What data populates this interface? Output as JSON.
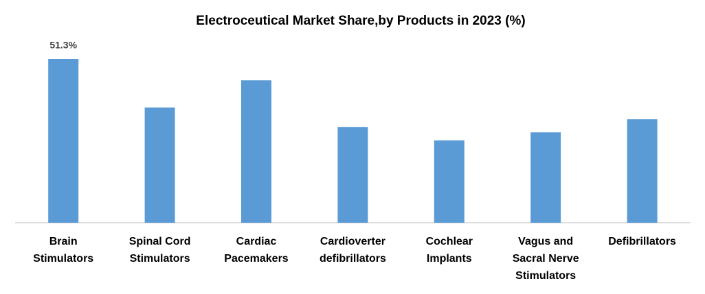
{
  "chart_data": {
    "type": "bar",
    "title": "Electroceutical Market Share,by Products in 2023 (%)",
    "categories": [
      "Brain Stimulators",
      "Spinal Cord Stimulators",
      "Cardiac Pacemakers",
      "Cardioverter defibrillators",
      "Cochlear Implants",
      "Vagus and Sacral Nerve Stimulators",
      "Defibrillators"
    ],
    "values": [
      51.3,
      36.1,
      44.6,
      30.0,
      25.8,
      28.3,
      32.4
    ],
    "value_labels": [
      "51.3%",
      null,
      null,
      null,
      null,
      null,
      null
    ],
    "color": "#5b9bd5"
  }
}
